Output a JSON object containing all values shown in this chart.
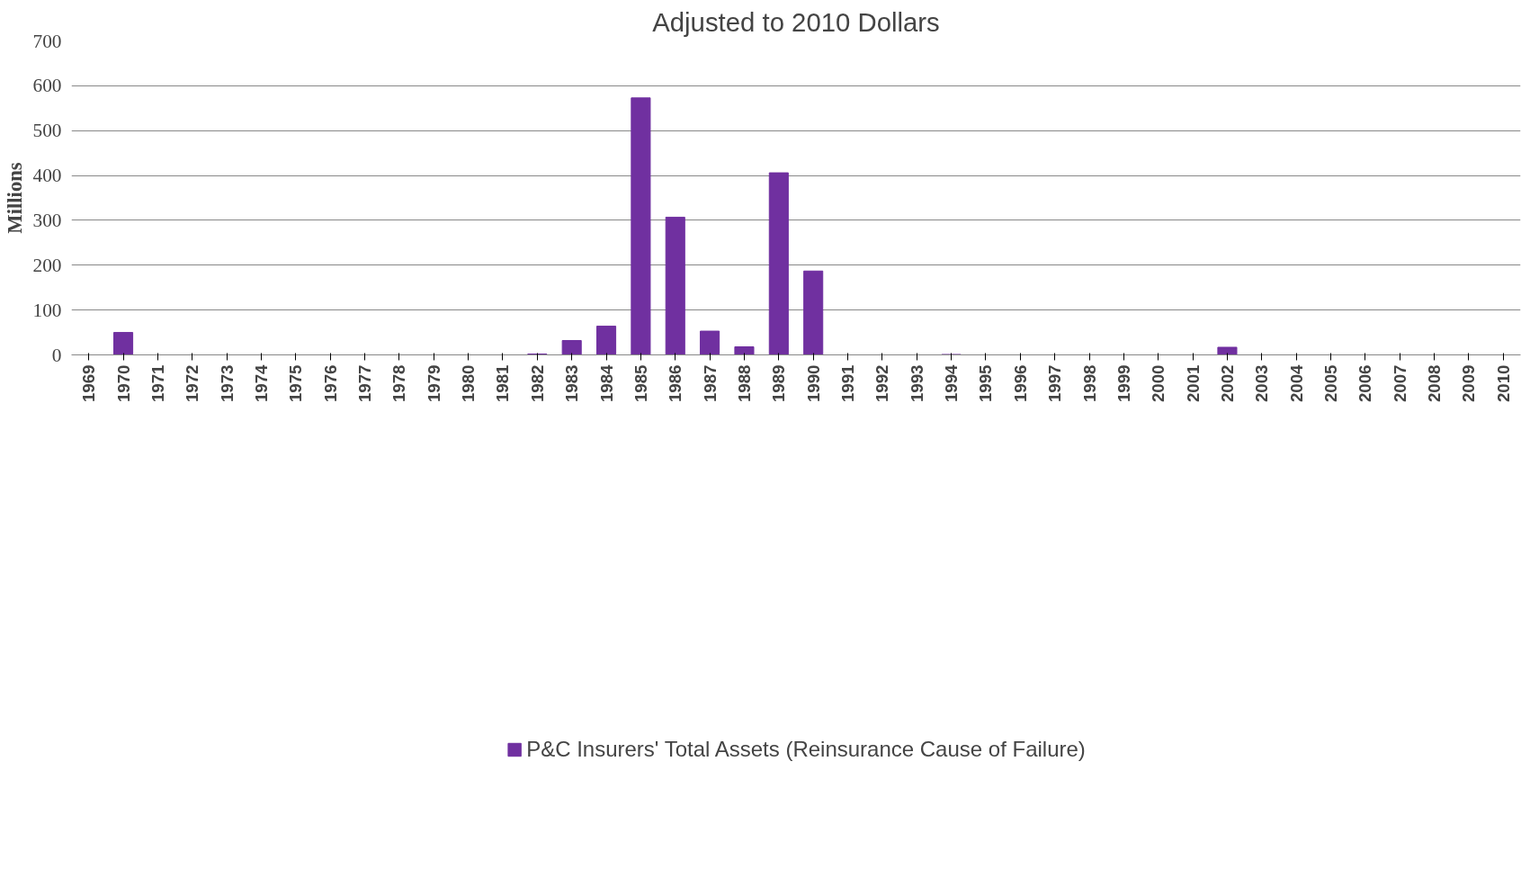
{
  "chart_data": {
    "type": "bar",
    "title": "Adjusted to 2010 Dollars",
    "ylabel": "Millions",
    "categories": [
      "1969",
      "1970",
      "1971",
      "1972",
      "1973",
      "1974",
      "1975",
      "1976",
      "1977",
      "1978",
      "1979",
      "1980",
      "1981",
      "1982",
      "1983",
      "1984",
      "1985",
      "1986",
      "1987",
      "1988",
      "1989",
      "1990",
      "1991",
      "1992",
      "1993",
      "1994",
      "1995",
      "1996",
      "1997",
      "1998",
      "1999",
      "2000",
      "2001",
      "2002",
      "2003",
      "2004",
      "2005",
      "2006",
      "2007",
      "2008",
      "2009",
      "2010"
    ],
    "series": [
      {
        "name": "P&C Insurers' Total Assets (Reinsurance Cause of Failure)",
        "color": "#7030a0",
        "values": [
          0,
          50,
          0,
          0,
          0,
          0,
          0,
          0,
          0,
          0,
          0,
          0,
          0,
          2,
          32,
          64,
          573,
          307,
          53,
          18,
          406,
          187,
          0,
          0,
          0,
          1,
          0,
          0,
          0,
          0,
          0,
          0,
          0,
          17,
          0,
          0,
          0,
          0,
          0,
          0,
          0,
          0
        ]
      }
    ],
    "ylim": [
      0,
      700
    ],
    "yticks": [
      0,
      100,
      200,
      300,
      400,
      500,
      600,
      700
    ],
    "grid": "y",
    "legend": "bottom"
  }
}
